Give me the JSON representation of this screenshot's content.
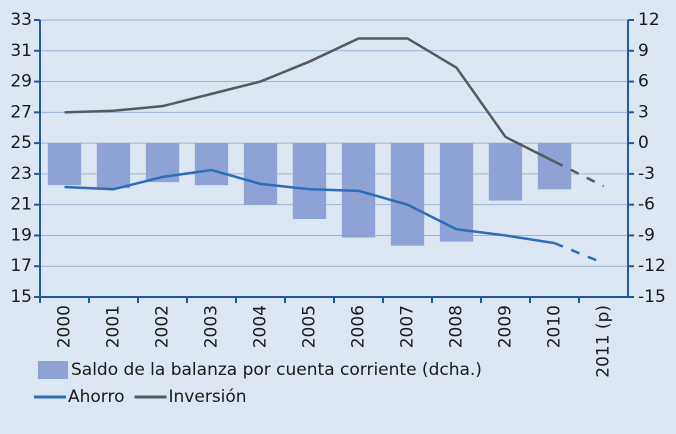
{
  "chart_data": {
    "type": "combo",
    "categories": [
      "2000",
      "2001",
      "2002",
      "2003",
      "2004",
      "2005",
      "2006",
      "2007",
      "2008",
      "2009",
      "2010",
      "2011 (p)"
    ],
    "series": [
      {
        "name": "Saldo de la balanza por cuenta corriente (dcha.)",
        "type": "bar",
        "axis": "y2",
        "color": "#8ea2d6",
        "values": [
          -4.1,
          -4.4,
          -3.8,
          -4.1,
          -6.0,
          -7.4,
          -9.2,
          -10.0,
          -9.6,
          -5.6,
          -4.5,
          null
        ]
      },
      {
        "name": "Ahorro",
        "type": "line",
        "color": "#2c6cb8",
        "values": [
          22.15,
          22.0,
          22.8,
          23.25,
          22.35,
          22.0,
          21.9,
          21.0,
          19.4,
          19.0,
          18.5,
          17.2
        ]
      },
      {
        "name": "Inversión",
        "type": "line",
        "color": "#555a5f",
        "values": [
          27.0,
          27.1,
          27.4,
          28.2,
          29.0,
          30.3,
          31.8,
          31.8,
          29.9,
          25.4,
          23.8,
          22.2
        ]
      }
    ],
    "dashed_from_index": 10,
    "ylim": [
      15,
      33
    ],
    "yticks": [
      15,
      17,
      19,
      21,
      23,
      25,
      27,
      29,
      31,
      33
    ],
    "y2lim": [
      -15,
      12
    ],
    "y2ticks": [
      -15,
      -12,
      -9,
      -6,
      -3,
      0,
      3,
      6,
      9,
      12
    ],
    "grid": true,
    "axis_color": "#1f5a9a",
    "background": "#dce7f3"
  }
}
